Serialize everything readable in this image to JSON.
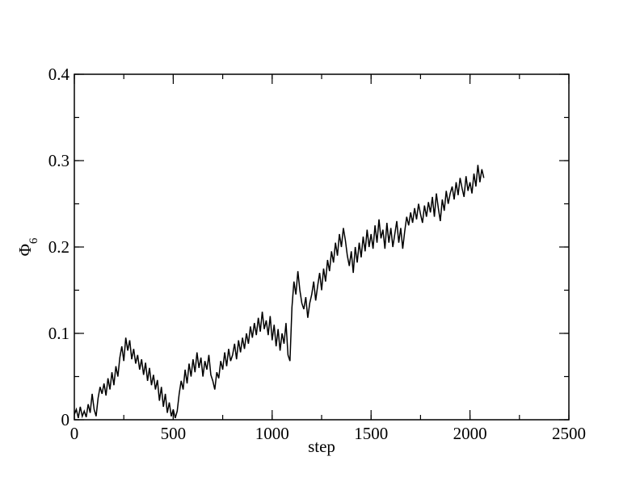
{
  "chart_data": {
    "type": "line",
    "x_label": "step",
    "y_label": "Φ",
    "y_label_subscript": "6",
    "xlim": [
      0,
      2500
    ],
    "xticks": [
      0,
      500,
      1000,
      1500,
      2000,
      2500
    ],
    "x_minor_step": 250,
    "ylim": [
      0,
      0.4
    ],
    "yticks": [
      0,
      0.1,
      0.2,
      0.3,
      0.4
    ],
    "y_minor_step": 0.05,
    "grid": false,
    "x": [
      0,
      10,
      20,
      30,
      40,
      50,
      60,
      70,
      80,
      90,
      100,
      110,
      120,
      130,
      140,
      150,
      160,
      170,
      180,
      190,
      200,
      210,
      220,
      230,
      240,
      250,
      260,
      270,
      280,
      290,
      300,
      310,
      320,
      330,
      340,
      350,
      360,
      370,
      380,
      390,
      400,
      410,
      420,
      430,
      440,
      450,
      460,
      470,
      480,
      490,
      500,
      510,
      520,
      530,
      540,
      550,
      560,
      570,
      580,
      590,
      600,
      610,
      620,
      630,
      640,
      650,
      660,
      670,
      680,
      690,
      700,
      710,
      720,
      730,
      740,
      750,
      760,
      770,
      780,
      790,
      800,
      810,
      820,
      830,
      840,
      850,
      860,
      870,
      880,
      890,
      900,
      910,
      920,
      930,
      940,
      950,
      960,
      970,
      980,
      990,
      1000,
      1010,
      1020,
      1030,
      1040,
      1050,
      1060,
      1070,
      1080,
      1090,
      1100,
      1110,
      1120,
      1130,
      1140,
      1150,
      1160,
      1170,
      1180,
      1190,
      1200,
      1210,
      1220,
      1230,
      1240,
      1250,
      1260,
      1270,
      1280,
      1290,
      1300,
      1310,
      1320,
      1330,
      1340,
      1350,
      1360,
      1370,
      1380,
      1390,
      1400,
      1410,
      1420,
      1430,
      1440,
      1450,
      1460,
      1470,
      1480,
      1490,
      1500,
      1510,
      1520,
      1530,
      1540,
      1550,
      1560,
      1570,
      1580,
      1590,
      1600,
      1610,
      1620,
      1630,
      1640,
      1650,
      1660,
      1670,
      1680,
      1690,
      1700,
      1710,
      1720,
      1730,
      1740,
      1750,
      1760,
      1770,
      1780,
      1790,
      1800,
      1810,
      1820,
      1830,
      1840,
      1850,
      1860,
      1870,
      1880,
      1890,
      1900,
      1910,
      1920,
      1930,
      1940,
      1950,
      1960,
      1970,
      1980,
      1990,
      2000,
      2010,
      2020,
      2030,
      2040,
      2050,
      2060,
      2070
    ],
    "series": [
      {
        "color": "#000000",
        "values": [
          0.006,
          0.012,
          0.002,
          0.015,
          0.004,
          0.01,
          0.003,
          0.018,
          0.008,
          0.03,
          0.012,
          0.004,
          0.025,
          0.038,
          0.03,
          0.042,
          0.028,
          0.048,
          0.035,
          0.055,
          0.04,
          0.062,
          0.05,
          0.072,
          0.085,
          0.068,
          0.095,
          0.08,
          0.092,
          0.07,
          0.082,
          0.065,
          0.075,
          0.058,
          0.07,
          0.052,
          0.066,
          0.045,
          0.06,
          0.04,
          0.052,
          0.035,
          0.046,
          0.022,
          0.038,
          0.015,
          0.03,
          0.008,
          0.02,
          0.004,
          0.012,
          0.002,
          0.01,
          0.03,
          0.045,
          0.035,
          0.058,
          0.042,
          0.065,
          0.05,
          0.07,
          0.055,
          0.078,
          0.06,
          0.072,
          0.05,
          0.068,
          0.058,
          0.075,
          0.052,
          0.045,
          0.035,
          0.055,
          0.048,
          0.068,
          0.058,
          0.078,
          0.062,
          0.082,
          0.068,
          0.075,
          0.088,
          0.07,
          0.092,
          0.078,
          0.095,
          0.082,
          0.1,
          0.088,
          0.108,
          0.095,
          0.112,
          0.098,
          0.118,
          0.102,
          0.125,
          0.105,
          0.115,
          0.098,
          0.12,
          0.092,
          0.11,
          0.085,
          0.105,
          0.08,
          0.1,
          0.088,
          0.112,
          0.075,
          0.068,
          0.13,
          0.16,
          0.145,
          0.172,
          0.15,
          0.135,
          0.128,
          0.142,
          0.118,
          0.135,
          0.145,
          0.16,
          0.138,
          0.155,
          0.17,
          0.15,
          0.175,
          0.16,
          0.185,
          0.172,
          0.195,
          0.182,
          0.205,
          0.19,
          0.215,
          0.2,
          0.222,
          0.208,
          0.19,
          0.178,
          0.195,
          0.17,
          0.2,
          0.182,
          0.205,
          0.188,
          0.212,
          0.195,
          0.22,
          0.2,
          0.215,
          0.198,
          0.225,
          0.205,
          0.232,
          0.21,
          0.22,
          0.198,
          0.228,
          0.205,
          0.222,
          0.2,
          0.215,
          0.23,
          0.205,
          0.222,
          0.198,
          0.218,
          0.235,
          0.225,
          0.24,
          0.228,
          0.245,
          0.232,
          0.25,
          0.238,
          0.228,
          0.248,
          0.235,
          0.252,
          0.24,
          0.258,
          0.235,
          0.262,
          0.245,
          0.23,
          0.255,
          0.242,
          0.265,
          0.25,
          0.262,
          0.27,
          0.255,
          0.275,
          0.26,
          0.28,
          0.268,
          0.258,
          0.282,
          0.265,
          0.275,
          0.262,
          0.285,
          0.27,
          0.295,
          0.275,
          0.29,
          0.28
        ]
      }
    ]
  }
}
